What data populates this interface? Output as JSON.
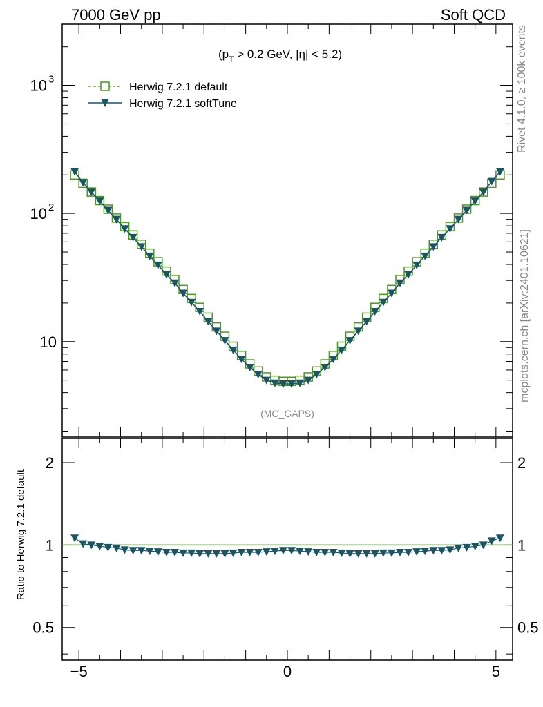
{
  "header": {
    "left": "7000 GeV pp",
    "right": "Soft QCD"
  },
  "side_labels": {
    "rivet": "Rivet 4.1.0, ≥ 100k events",
    "mcplots": "mcplots.cern.ch [arXiv:2401.10621]"
  },
  "main_panel": {
    "cut_label": {
      "open": "(p",
      "sub": "T",
      "rest": " > 0.2 GeV, |η| < 5.2)"
    },
    "analysis": "(MC_GAPS)"
  },
  "chart_data": {
    "type": "line",
    "title": "",
    "xlabel": "",
    "ylabel": "",
    "xlim": [
      -5.4,
      5.4
    ],
    "ylim": [
      1.8,
      3000
    ],
    "yscale": "log",
    "y_tick_labels": [
      "10",
      "10",
      "10"
    ],
    "y_tick_exponents": [
      "",
      "2",
      "3"
    ],
    "y_tick_values": [
      10,
      100,
      1000
    ],
    "x": [
      -5.1,
      -4.9,
      -4.7,
      -4.5,
      -4.3,
      -4.1,
      -3.9,
      -3.7,
      -3.5,
      -3.3,
      -3.1,
      -2.9,
      -2.7,
      -2.5,
      -2.3,
      -2.1,
      -1.9,
      -1.7,
      -1.5,
      -1.3,
      -1.1,
      -0.9,
      -0.7,
      -0.5,
      -0.3,
      -0.1,
      0.1,
      0.3,
      0.5,
      0.7,
      0.9,
      1.1,
      1.3,
      1.5,
      1.7,
      1.9,
      2.1,
      2.3,
      2.5,
      2.7,
      2.9,
      3.1,
      3.3,
      3.5,
      3.7,
      3.9,
      4.1,
      4.3,
      4.5,
      4.7,
      4.9,
      5.1
    ],
    "series": [
      {
        "name": "Herwig 7.2.1 default",
        "color": "#4a9a1c",
        "marker": "open-square",
        "dash": "dashed",
        "values": [
          200,
          172,
          147,
          126,
          108,
          92,
          79,
          68,
          57.5,
          49,
          42,
          35.5,
          30.5,
          25.5,
          21.7,
          18.5,
          15.5,
          13,
          11,
          9.2,
          7.8,
          6.7,
          5.9,
          5.3,
          5.0,
          4.9,
          4.9,
          5.0,
          5.3,
          5.9,
          6.7,
          7.8,
          9.2,
          11,
          13,
          15.5,
          18.5,
          21.7,
          25.5,
          30.5,
          35.5,
          42,
          49,
          57.5,
          68,
          79,
          92,
          108,
          126,
          147,
          172,
          200
        ]
      },
      {
        "name": "Herwig 7.2.1 softTune",
        "color": "#1a5566",
        "marker": "filled-triangle-down",
        "dash": "solid",
        "values": [
          212,
          174,
          147,
          125,
          106,
          90,
          76,
          65,
          55,
          46.5,
          39.6,
          33.4,
          28.7,
          23.9,
          20.3,
          17.2,
          14.4,
          12.1,
          10.2,
          8.6,
          7.3,
          6.3,
          5.55,
          5.0,
          4.75,
          4.68,
          4.68,
          4.75,
          5.0,
          5.55,
          6.3,
          7.3,
          8.6,
          10.2,
          12.1,
          14.4,
          17.2,
          20.3,
          23.9,
          28.7,
          33.4,
          39.6,
          46.5,
          55,
          65,
          76,
          90,
          106,
          125,
          147,
          178,
          212
        ]
      }
    ],
    "legend_position": "top-left",
    "x_tick_labels": [
      "−5",
      "0",
      "5"
    ],
    "x_tick_values": [
      -5,
      0,
      5
    ],
    "ratio": {
      "ylabel": "Ratio to Herwig 7.2.1 default",
      "ylim": [
        0.38,
        2.45
      ],
      "yscale": "log",
      "y_tick_labels": [
        "0.5",
        "1",
        "2"
      ],
      "y_tick_values": [
        0.5,
        1,
        2
      ],
      "reference_line": 1,
      "values": [
        1.06,
        1.01,
        1.0,
        0.99,
        0.98,
        0.975,
        0.96,
        0.955,
        0.955,
        0.95,
        0.945,
        0.94,
        0.94,
        0.935,
        0.935,
        0.93,
        0.93,
        0.93,
        0.93,
        0.935,
        0.94,
        0.94,
        0.94,
        0.945,
        0.95,
        0.955,
        0.955,
        0.95,
        0.945,
        0.94,
        0.94,
        0.94,
        0.935,
        0.93,
        0.93,
        0.93,
        0.93,
        0.935,
        0.935,
        0.94,
        0.94,
        0.945,
        0.95,
        0.955,
        0.955,
        0.96,
        0.975,
        0.98,
        0.99,
        1.0,
        1.035,
        1.06
      ]
    }
  }
}
